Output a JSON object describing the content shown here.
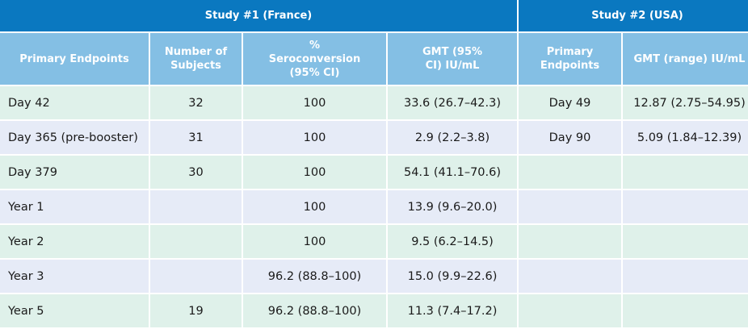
{
  "study1": {
    "title": "Study #1 (France)",
    "headers": [
      "Primary Endpoints",
      "Number of Subjects",
      "% Seroconversion (95% CI)",
      "GMT (95% CI) IU/mL"
    ],
    "rows": [
      [
        "Day 42",
        "32",
        "100",
        "33.6 (26.7–42.3)"
      ],
      [
        "Day 365 (pre-booster)",
        "31",
        "100",
        "2.9 (2.2–3.8)"
      ],
      [
        "Day 379",
        "30",
        "100",
        "54.1 (41.1–70.6)"
      ],
      [
        "Year 1",
        "",
        "100",
        "13.9 (9.6–20.0)"
      ],
      [
        "Year 2",
        "",
        "100",
        "9.5 (6.2–14.5)"
      ],
      [
        "Year 3",
        "",
        "96.2 (88.8–100)",
        "15.0 (9.9–22.6)"
      ],
      [
        "Year 5",
        "19",
        "96.2 (88.8–100)",
        "11.3 (7.4–17.2)"
      ]
    ]
  },
  "study2": {
    "title": "Study #2 (USA)",
    "headers": [
      "Primary Endpoints",
      "GMT (range) IU/mL"
    ],
    "rows": [
      [
        "Day 49",
        "12.87 (2.75–54.95)"
      ],
      [
        "Day 90",
        "5.09 (1.84–12.39)"
      ],
      [
        "",
        ""
      ],
      [
        "",
        ""
      ],
      [
        "",
        ""
      ],
      [
        "",
        ""
      ],
      [
        "",
        ""
      ]
    ]
  }
}
